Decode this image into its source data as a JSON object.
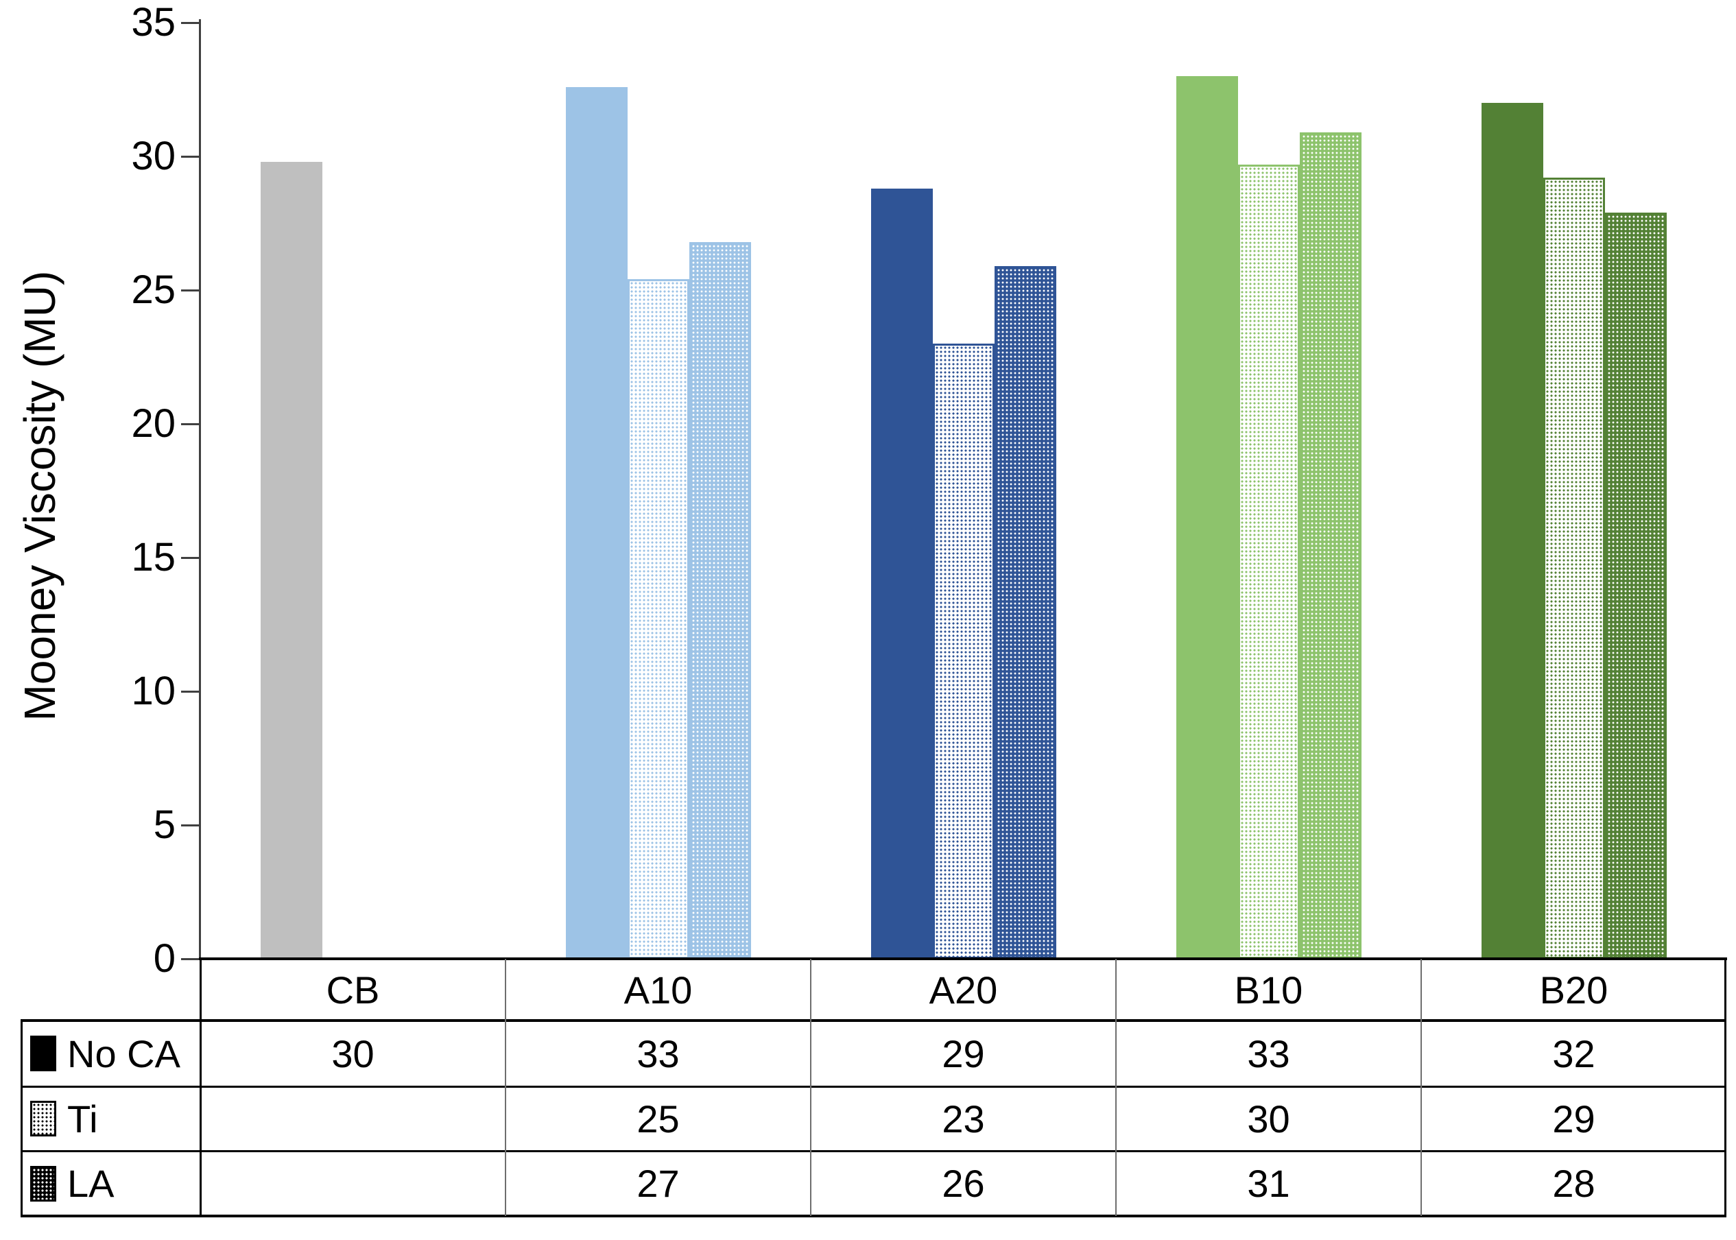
{
  "chart_data": {
    "type": "bar",
    "ylabel": "Mooney Viscosity (MU)",
    "ylim": [
      0,
      35
    ],
    "ytick_step": 5,
    "ytick_labels": [
      "0",
      "5",
      "10",
      "15",
      "20",
      "25",
      "30",
      "35"
    ],
    "grid": false,
    "legend_position": "table-left",
    "categories": [
      "CB",
      "A10",
      "A20",
      "B10",
      "B20"
    ],
    "category_colors": {
      "CB": "#BFBFBF",
      "A10": "#9DC3E6",
      "A20": "#2F5496",
      "B10": "#8DC36C",
      "B20": "#538135"
    },
    "series": [
      {
        "name": "No CA",
        "pattern": "solid",
        "values_table": [
          30,
          33,
          29,
          33,
          32
        ],
        "values_plotted": [
          29.8,
          32.6,
          28.8,
          33.0,
          32.0
        ]
      },
      {
        "name": "Ti",
        "pattern": "dots",
        "values_table": [
          null,
          25,
          23,
          30,
          29
        ],
        "values_plotted": [
          null,
          25.4,
          23.0,
          29.7,
          29.2
        ]
      },
      {
        "name": "LA",
        "pattern": "dense",
        "values_table": [
          null,
          27,
          26,
          31,
          28
        ],
        "values_plotted": [
          null,
          26.8,
          25.9,
          30.9,
          27.9
        ]
      }
    ]
  }
}
